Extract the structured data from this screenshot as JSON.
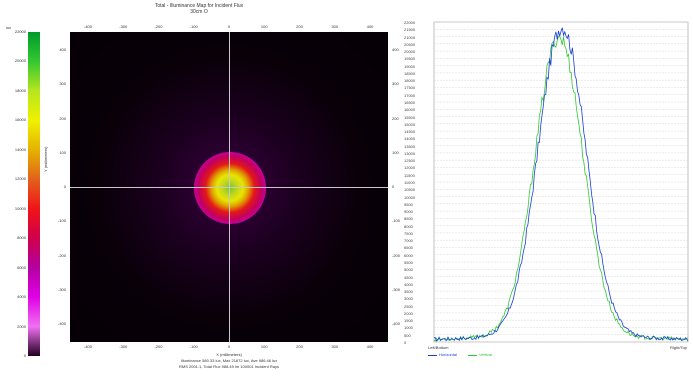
{
  "illuminance_map": {
    "title": "Total - Illuminance Map for Incident Flux",
    "subtitle": "30cm O",
    "colorbar": {
      "unit": "lux",
      "tick_labels": [
        "22000",
        "20000",
        "18000",
        "16000",
        "14000",
        "12000",
        "10000",
        "8000",
        "6000",
        "4000",
        "2000",
        "0"
      ],
      "colors": [
        "#009a2a",
        "#33c832",
        "#b6e61e",
        "#f0f000",
        "#e4b300",
        "#e2611b",
        "#f01418",
        "#d0004a",
        "#b400a0",
        "#e000e6",
        "#f070f0",
        "#200020"
      ]
    },
    "yaxis_label": "Y (millimeters)",
    "xaxis_label": "X (millimeters)",
    "xtick_labels": [
      "-400",
      "-300",
      "-200",
      "-100",
      "0",
      "100",
      "200",
      "300",
      "400"
    ],
    "ytick_labels": [
      "400",
      "300",
      "200",
      "100",
      "0",
      "-100",
      "-200",
      "-300",
      "-400"
    ],
    "footer_line1": "Illuminance 580.33 lux, Max 21672 lux, Ave 986.46 lux",
    "footer_line2": "RMS 2001.1, Total Flux 988.49 lm 100001 Incident Rays"
  },
  "cross_section": {
    "y_tick_labels": [
      "22000",
      "21500",
      "21000",
      "20500",
      "20000",
      "19500",
      "19000",
      "18500",
      "18000",
      "17500",
      "17000",
      "16500",
      "16000",
      "15500",
      "15000",
      "14500",
      "14000",
      "13500",
      "13000",
      "12500",
      "12000",
      "11500",
      "11000",
      "10500",
      "10000",
      "9500",
      "9000",
      "8500",
      "8000",
      "7500",
      "7000",
      "6500",
      "6000",
      "5500",
      "5000",
      "4500",
      "4000",
      "3500",
      "3000",
      "2500",
      "2000",
      "1500",
      "1000",
      "500",
      "0"
    ],
    "left_label": "Left/Bottom",
    "right_label": "Right/Top",
    "legend": [
      {
        "name": "Horizontal",
        "color": "#1a3fd6"
      },
      {
        "name": "Vertical",
        "color": "#32c832"
      }
    ]
  }
}
